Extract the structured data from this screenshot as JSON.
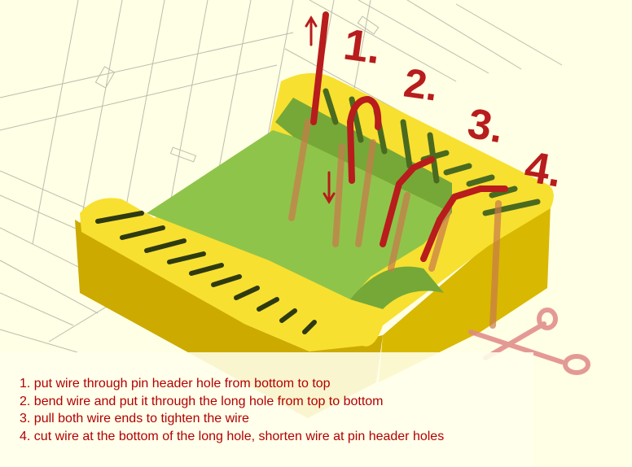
{
  "step_labels": [
    "1.",
    "2.",
    "3.",
    "4."
  ],
  "instructions": [
    "1. put wire through pin header hole from bottom to top",
    "2. bend wire and put it through the long hole from top to bottom",
    "3. pull both wire ends to tighten the wire",
    "4. cut wire at the bottom of the long hole, shorten wire at pin header holes"
  ],
  "colors": {
    "background": "#ffffe5",
    "part_top": "#f8e030",
    "part_side": "#e2c000",
    "part_front": "#ccaa00",
    "floor": "#8fc44a",
    "floor_shade": "#76a838",
    "wire": "#b81c1c",
    "wire_faded": "#c97a4a",
    "text": "#b20000",
    "grid": "#bcbcae",
    "scissors": "#e08888"
  },
  "icons": [
    "up-arrow-icon",
    "down-arrow-icon",
    "scissors-icon"
  ]
}
